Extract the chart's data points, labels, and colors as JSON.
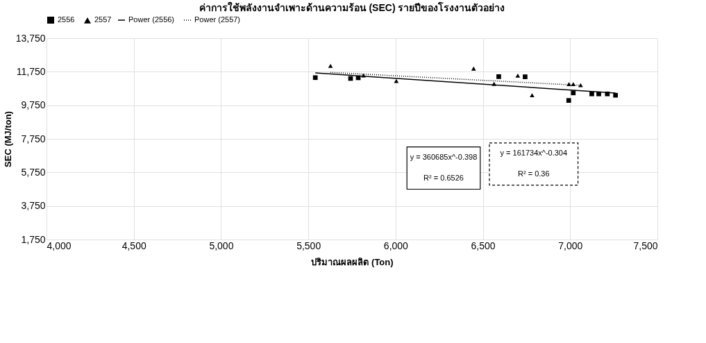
{
  "chart_data": {
    "type": "scatter",
    "title": "ค่าการใช้พลังงานจำเพาะด้านความร้อน (SEC) รายปีของโรงงานตัวอย่าง",
    "xlabel": "ปริมาณผลผลิต (Ton)",
    "ylabel": "SEC (MJ/ton)",
    "xlim": [
      4000,
      7500
    ],
    "xticks": [
      {
        "value": 4000,
        "label": "4,000"
      },
      {
        "value": 4500,
        "label": "4,500"
      },
      {
        "value": 5000,
        "label": "5,000"
      },
      {
        "value": 5500,
        "label": "5,500"
      },
      {
        "value": 6000,
        "label": "6,000"
      },
      {
        "value": 6500,
        "label": "6,500"
      },
      {
        "value": 7000,
        "label": "7,000"
      },
      {
        "value": 7500,
        "label": "7,500"
      }
    ],
    "ylim": [
      1750,
      13750
    ],
    "yticks": [
      {
        "value": 1750,
        "label": "1,750"
      },
      {
        "value": 3750,
        "label": "3,750"
      },
      {
        "value": 5750,
        "label": "5,750"
      },
      {
        "value": 7750,
        "label": "7,750"
      },
      {
        "value": 9750,
        "label": "9,750"
      },
      {
        "value": 11750,
        "label": "11,750"
      },
      {
        "value": 13750,
        "label": "13,750"
      }
    ],
    "grid": true,
    "legend": "top",
    "series": [
      {
        "name": "2556",
        "marker": "square",
        "color": "#000000",
        "x": [
          5540,
          5742,
          5786,
          6591,
          6742,
          6992,
          7018,
          7124,
          7164,
          7213,
          7260
        ],
        "values": [
          11400,
          11350,
          11390,
          11460,
          11450,
          10040,
          10490,
          10430,
          10430,
          10430,
          10350
        ]
      },
      {
        "name": "2557",
        "marker": "triangle",
        "color": "#000000",
        "x": [
          5627,
          5816,
          6004,
          6447,
          6564,
          6700,
          6782,
          6993,
          7018,
          7060
        ],
        "values": [
          12100,
          11530,
          11200,
          11940,
          11030,
          11520,
          10350,
          11010,
          11010,
          10950
        ]
      },
      {
        "name": "Power (2556)",
        "type": "line",
        "line_style": "solid",
        "marker": "none",
        "color": "#000000",
        "x": [
          5540,
          7260
        ],
        "values": [
          11680,
          10480
        ]
      },
      {
        "name": "Power (2557)",
        "type": "line",
        "line_style": "dotted",
        "marker": "none",
        "color": "#000000",
        "x": [
          5627,
          7060
        ],
        "values": [
          11710,
          10940
        ]
      }
    ],
    "annotations": [
      "y = 360685x^-0.398",
      "R² = 0.6526",
      "y = 161734x^-0.304",
      "R² = 0.36"
    ]
  }
}
